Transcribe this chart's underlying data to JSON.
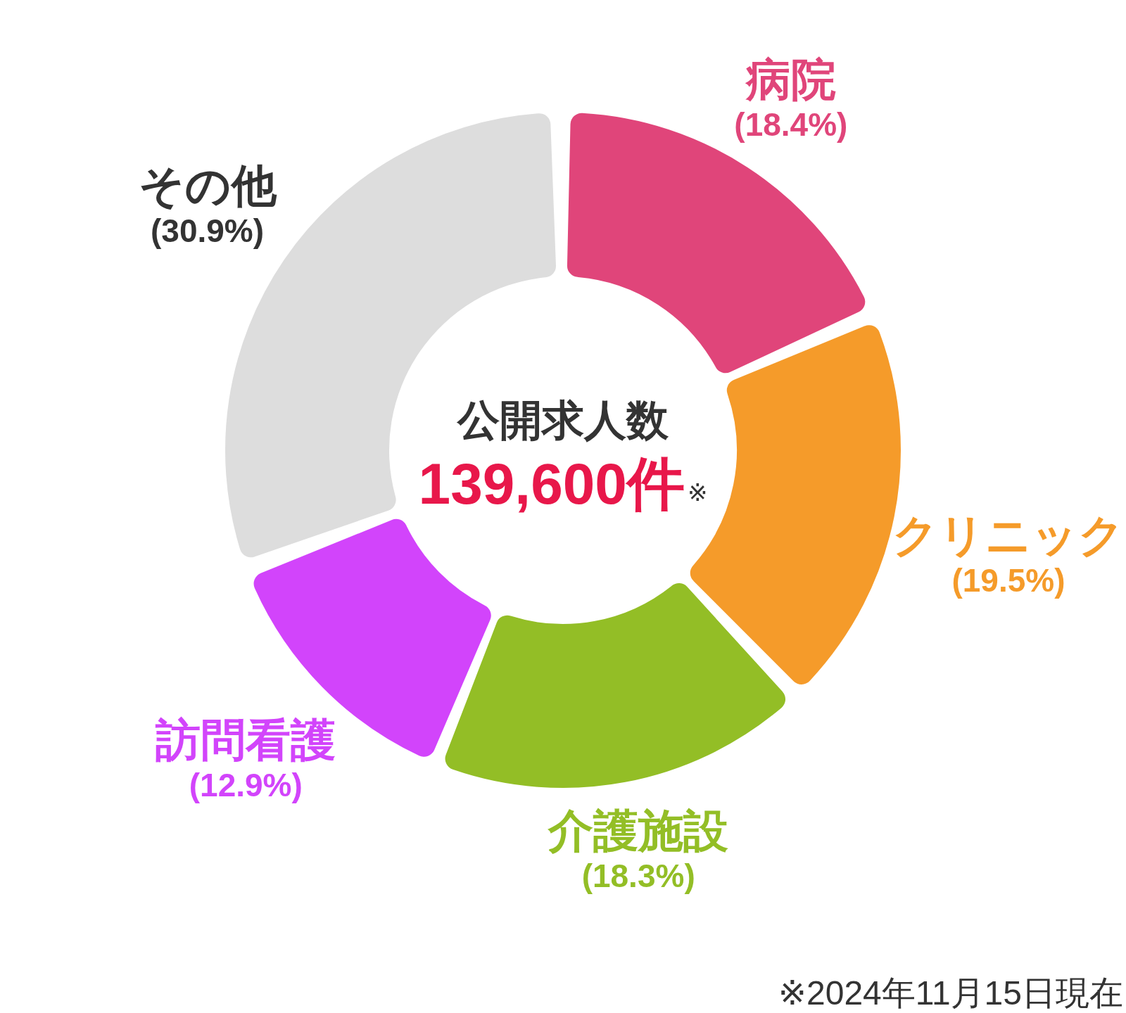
{
  "chart_data": {
    "type": "donut",
    "title": "公開求人数",
    "subtitle": "139,600件",
    "categories": [
      "病院",
      "クリニック",
      "介護施設",
      "訪問看護",
      "その他"
    ],
    "values": [
      18.4,
      19.5,
      18.3,
      12.9,
      30.9
    ],
    "colors": [
      "#e0457a",
      "#f59b2a",
      "#93be26",
      "#d244fb",
      "#dddddd"
    ],
    "value_labels": [
      "(18.4%)",
      "(19.5%)",
      "(18.3%)",
      "(12.9%)",
      "(30.9%)"
    ],
    "annotations": [
      "※",
      "※2024年11月15日現在"
    ]
  }
}
